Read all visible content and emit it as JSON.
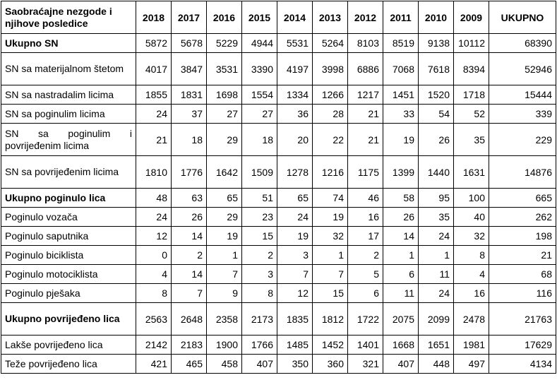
{
  "table": {
    "corner": "Saobraćajne nezgode i njihove posledice",
    "columns": [
      "2018",
      "2017",
      "2016",
      "2015",
      "2014",
      "2013",
      "2012",
      "2011",
      "2010",
      "2009",
      "UKUPNO"
    ],
    "rows": [
      {
        "label": "Ukupno SN",
        "bold": true,
        "values": [
          "5872",
          "5678",
          "5229",
          "4944",
          "5531",
          "5264",
          "8103",
          "8519",
          "9138",
          "10112",
          "68390"
        ]
      },
      {
        "label": "SN sa materijalnom štetom",
        "bold": false,
        "values": [
          "4017",
          "3847",
          "3531",
          "3390",
          "4197",
          "3998",
          "6886",
          "7068",
          "7618",
          "8394",
          "52946"
        ]
      },
      {
        "label": "SN sa nastradalim licima",
        "bold": false,
        "values": [
          "1855",
          "1831",
          "1698",
          "1554",
          "1334",
          "1266",
          "1217",
          "1451",
          "1520",
          "1718",
          "15444"
        ]
      },
      {
        "label": "SN sa poginulim licima",
        "bold": false,
        "values": [
          "24",
          "37",
          "27",
          "27",
          "36",
          "28",
          "21",
          "33",
          "54",
          "52",
          "339"
        ]
      },
      {
        "label": "SN sa poginulim i povrijeđenim licima",
        "bold": false,
        "values": [
          "21",
          "18",
          "29",
          "18",
          "20",
          "22",
          "21",
          "19",
          "26",
          "35",
          "229"
        ]
      },
      {
        "label": "SN sa povrijeđenim licima",
        "bold": false,
        "values": [
          "1810",
          "1776",
          "1642",
          "1509",
          "1278",
          "1216",
          "1175",
          "1399",
          "1440",
          "1631",
          "14876"
        ]
      },
      {
        "label": "Ukupno poginulo lica",
        "bold": true,
        "values": [
          "48",
          "63",
          "65",
          "51",
          "65",
          "74",
          "46",
          "58",
          "95",
          "100",
          "665"
        ]
      },
      {
        "label": "Poginulo vozača",
        "bold": false,
        "values": [
          "24",
          "26",
          "29",
          "23",
          "24",
          "19",
          "16",
          "26",
          "35",
          "40",
          "262"
        ]
      },
      {
        "label": "Poginulo saputnika",
        "bold": false,
        "values": [
          "12",
          "14",
          "19",
          "15",
          "19",
          "32",
          "17",
          "14",
          "24",
          "32",
          "198"
        ]
      },
      {
        "label": "Poginulo biciklista",
        "bold": false,
        "values": [
          "0",
          "2",
          "1",
          "2",
          "3",
          "1",
          "2",
          "1",
          "1",
          "8",
          "21"
        ]
      },
      {
        "label": "Poginulo motociklista",
        "bold": false,
        "values": [
          "4",
          "14",
          "7",
          "3",
          "7",
          "7",
          "5",
          "6",
          "11",
          "4",
          "68"
        ]
      },
      {
        "label": "Poginulo pješaka",
        "bold": false,
        "values": [
          "8",
          "7",
          "9",
          "8",
          "12",
          "15",
          "6",
          "11",
          "24",
          "16",
          "116"
        ]
      },
      {
        "label": "Ukupno povrijeđeno lica",
        "bold": true,
        "values": [
          "2563",
          "2648",
          "2358",
          "2173",
          "1835",
          "1812",
          "1722",
          "2075",
          "2099",
          "2478",
          "21763"
        ]
      },
      {
        "label": "Lakše povrijeđeno lica",
        "bold": false,
        "values": [
          "2142",
          "2183",
          "1900",
          "1766",
          "1485",
          "1452",
          "1401",
          "1668",
          "1651",
          "1981",
          "17629"
        ]
      },
      {
        "label": "Teže povrijeđeno lica",
        "bold": false,
        "values": [
          "421",
          "465",
          "458",
          "407",
          "350",
          "360",
          "321",
          "407",
          "448",
          "497",
          "4134"
        ]
      }
    ]
  }
}
